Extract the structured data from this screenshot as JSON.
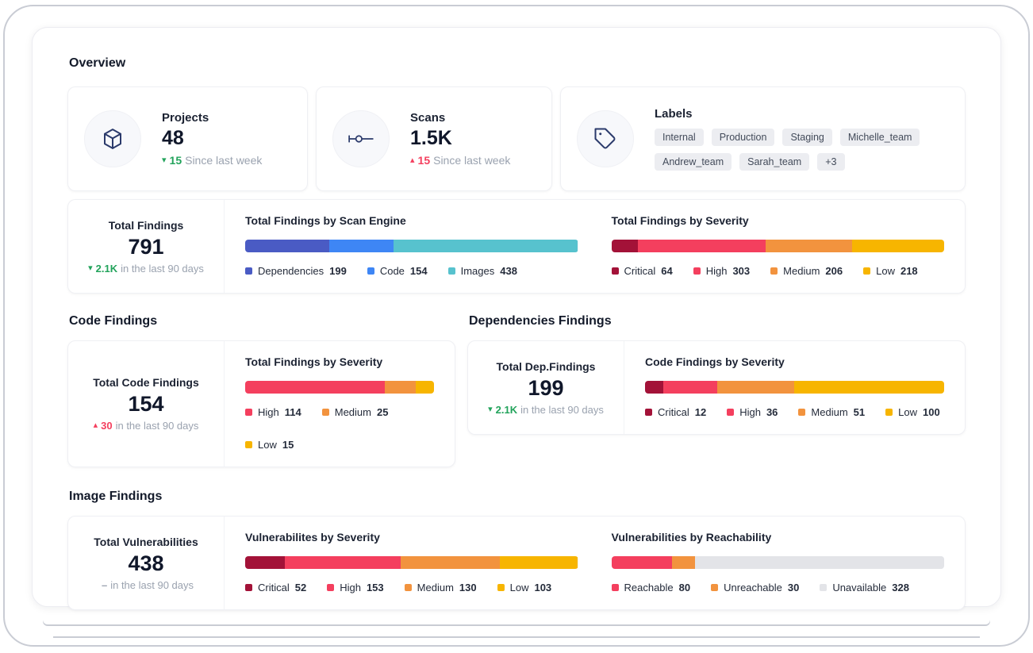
{
  "page": {
    "title": "Overview"
  },
  "colors": {
    "green": "#22a35b",
    "red": "#f43f5e",
    "muted": "#9aa2af",
    "dependencies": "#4a5bc4",
    "code": "#3e86f5",
    "images": "#57c2ce",
    "critical": "#a31238",
    "high": "#f43f5e",
    "medium": "#f2933e",
    "low": "#f7b500",
    "unavailable": "#e3e4e8"
  },
  "stat_cards": {
    "projects": {
      "icon": "cube-icon",
      "label": "Projects",
      "value": "48",
      "delta_icon": "▾",
      "delta_value": "15",
      "delta_color": "#22a35b",
      "delta_caption": "Since last week"
    },
    "scans": {
      "icon": "scan-commit-icon",
      "label": "Scans",
      "value": "1.5K",
      "delta_icon": "▴",
      "delta_value": "15",
      "delta_color": "#f43f5e",
      "delta_caption": "Since last week"
    },
    "labels": {
      "icon": "tag-icon",
      "label": "Labels",
      "chips": [
        "Internal",
        "Production",
        "Staging",
        "Michelle_team",
        "Andrew_team",
        "Sarah_team",
        "+3"
      ]
    }
  },
  "total_findings": {
    "summary": {
      "title": "Total Findings",
      "value": "791",
      "delta_icon": "▾",
      "delta_value": "2.1K",
      "delta_color": "#22a35b",
      "delta_caption": "in the last 90 days"
    },
    "by_engine": {
      "title": "Total Findings by Scan Engine",
      "segments": [
        {
          "label": "Dependencies",
          "value": 199,
          "color": "#4a5bc4"
        },
        {
          "label": "Code",
          "value": 154,
          "color": "#3e86f5"
        },
        {
          "label": "Images",
          "value": 438,
          "color": "#57c2ce"
        }
      ]
    },
    "by_severity": {
      "title": "Total Findings by Severity",
      "segments": [
        {
          "label": "Critical",
          "value": 64,
          "color": "#a31238"
        },
        {
          "label": "High",
          "value": 303,
          "color": "#f43f5e"
        },
        {
          "label": "Medium",
          "value": 206,
          "color": "#f2933e"
        },
        {
          "label": "Low",
          "value": 218,
          "color": "#f7b500"
        }
      ]
    }
  },
  "code_findings": {
    "heading": "Code Findings",
    "summary": {
      "title": "Total Code Findings",
      "value": "154",
      "delta_icon": "▴",
      "delta_value": "30",
      "delta_color": "#f43f5e",
      "delta_caption": "in the last 90 days"
    },
    "by_severity": {
      "title": "Total Findings by Severity",
      "segments": [
        {
          "label": "High",
          "value": 114,
          "color": "#f43f5e"
        },
        {
          "label": "Medium",
          "value": 25,
          "color": "#f2933e"
        },
        {
          "label": "Low",
          "value": 15,
          "color": "#f7b500"
        }
      ]
    }
  },
  "dependencies_findings": {
    "heading": "Dependencies Findings",
    "summary": {
      "title": "Total Dep.Findings",
      "value": "199",
      "delta_icon": "▾",
      "delta_value": "2.1K",
      "delta_color": "#22a35b",
      "delta_caption": "in the last 90 days"
    },
    "by_severity": {
      "title": "Code Findings by Severity",
      "segments": [
        {
          "label": "Critical",
          "value": 12,
          "color": "#a31238"
        },
        {
          "label": "High",
          "value": 36,
          "color": "#f43f5e"
        },
        {
          "label": "Medium",
          "value": 51,
          "color": "#f2933e"
        },
        {
          "label": "Low",
          "value": 100,
          "color": "#f7b500"
        }
      ]
    }
  },
  "image_findings": {
    "heading": "Image Findings",
    "summary": {
      "title": "Total Vulnerabilities",
      "value": "438",
      "delta_icon": "",
      "delta_value": "–",
      "delta_color": "#9aa2af",
      "delta_caption": "in the last 90 days"
    },
    "by_severity": {
      "title": "Vulnerabilites by Severity",
      "segments": [
        {
          "label": "Critical",
          "value": 52,
          "color": "#a31238"
        },
        {
          "label": "High",
          "value": 153,
          "color": "#f43f5e"
        },
        {
          "label": "Medium",
          "value": 130,
          "color": "#f2933e"
        },
        {
          "label": "Low",
          "value": 103,
          "color": "#f7b500"
        }
      ]
    },
    "by_reachability": {
      "title": "Vulnerabilities by Reachability",
      "segments": [
        {
          "label": "Reachable",
          "value": 80,
          "color": "#f43f5e"
        },
        {
          "label": "Unreachable",
          "value": 30,
          "color": "#f2933e"
        },
        {
          "label": "Unavailable",
          "value": 328,
          "color": "#e3e4e8"
        }
      ]
    }
  }
}
